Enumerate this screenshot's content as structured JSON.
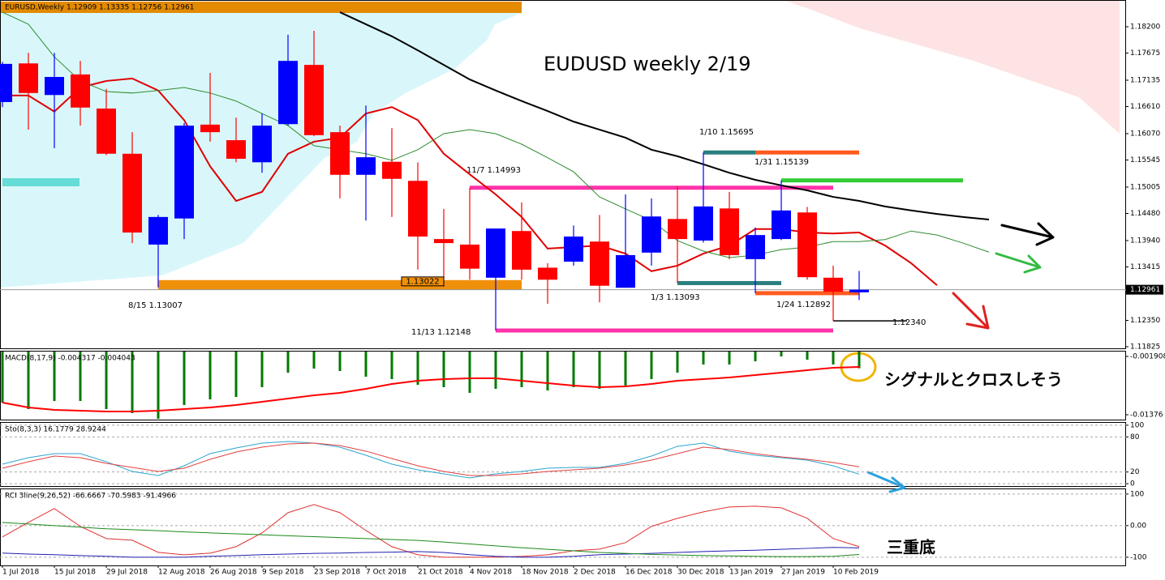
{
  "chart_data": [
    {
      "type": "candlestick",
      "title": "EURUSD,Weekly  1.12909 1.13335 1.12756 1.12961",
      "annotation": "EUDUSD weekly 2/19",
      "categories": [
        "1 Jul 2018",
        null,
        "15 Jul 2018",
        null,
        "29 Jul 2018",
        null,
        "12 Aug 2018",
        null,
        "26 Aug 2018",
        null,
        "9 Sep 2018",
        null,
        "23 Sep 2018",
        null,
        "7 Oct 2018",
        null,
        "21 Oct 2018",
        null,
        "4 Nov 2018",
        null,
        "18 Nov 2018",
        null,
        "2 Dec 2018",
        null,
        "16 Dec 2018",
        null,
        "30 Dec 2018",
        null,
        "13 Jan 2019",
        null,
        "27 Jan 2019",
        null,
        "10 Feb 2019",
        null,
        null,
        null,
        null,
        null,
        null
      ],
      "open": [
        1.167,
        1.1747,
        1.1684,
        1.1725,
        1.1657,
        1.1567,
        1.1386,
        1.1438,
        1.1625,
        1.1594,
        1.155,
        1.1626,
        1.1744,
        1.161,
        1.1525,
        1.1551,
        1.1513,
        1.1397,
        1.1386,
        1.132,
        1.1413,
        1.134,
        1.1352,
        1.1392,
        1.13,
        1.137,
        1.1437,
        1.1394,
        1.1458,
        1.1357,
        1.1397,
        1.145,
        1.132,
        1.12909,
        null,
        null,
        null,
        null,
        null
      ],
      "high": [
        1.175,
        1.1768,
        1.1768,
        1.1752,
        1.1696,
        1.161,
        1.1445,
        1.1628,
        1.1728,
        1.1639,
        1.1647,
        1.1804,
        1.1812,
        1.1623,
        1.1663,
        1.1618,
        1.155,
        1.1457,
        1.14993,
        1.1418,
        1.147,
        1.1349,
        1.1424,
        1.1445,
        1.1486,
        1.1478,
        1.1502,
        1.15695,
        1.1491,
        1.142,
        1.15139,
        1.1461,
        1.1344,
        1.13335,
        null,
        null,
        null,
        null,
        null
      ],
      "low": [
        1.166,
        1.1615,
        1.1578,
        1.1623,
        1.1564,
        1.1389,
        1.13007,
        1.1397,
        1.1591,
        1.155,
        1.1529,
        1.1623,
        1.1602,
        1.1478,
        1.1434,
        1.1441,
        1.1336,
        1.13022,
        1.1316,
        1.12148,
        1.1316,
        1.1268,
        1.1344,
        1.1271,
        1.13,
        1.1344,
        1.13093,
        1.139,
        1.1357,
        1.12892,
        1.1395,
        1.1316,
        1.1234,
        1.12756,
        null,
        null,
        null,
        null,
        null
      ],
      "close": [
        1.1746,
        1.1688,
        1.172,
        1.1659,
        1.1567,
        1.141,
        1.1441,
        1.1623,
        1.161,
        1.1557,
        1.1623,
        1.1752,
        1.1604,
        1.1525,
        1.156,
        1.1517,
        1.1402,
        1.1389,
        1.1338,
        1.1418,
        1.1336,
        1.1316,
        1.1402,
        1.1304,
        1.1365,
        1.1442,
        1.1397,
        1.1462,
        1.1365,
        1.1405,
        1.1454,
        1.1321,
        1.1292,
        1.12961,
        null,
        null,
        null,
        null,
        null
      ],
      "up_color": "#0000ff",
      "down_color": "#ff0000",
      "lines": [
        {
          "color": "#e00000",
          "values": [
            1.1683,
            1.1683,
            1.1651,
            1.1699,
            1.1712,
            1.1717,
            1.1693,
            1.1634,
            1.1542,
            1.1473,
            1.1491,
            1.1567,
            1.1591,
            1.1599,
            1.1647,
            1.166,
            1.1634,
            1.1567,
            1.1526,
            1.1486,
            1.1441,
            1.1378,
            1.1381,
            1.1384,
            1.1368,
            1.1333,
            1.1344,
            1.1368,
            1.1384,
            1.1417,
            1.1417,
            1.141,
            1.1408,
            1.141,
            1.1384,
            1.1349,
            1.1305,
            null,
            null
          ]
        },
        {
          "color": "#2e8b2e",
          "values": [
            1.1849,
            1.1825,
            1.176,
            1.1712,
            1.1691,
            1.1688,
            1.1693,
            1.1699,
            1.1688,
            1.1672,
            1.1647,
            1.1623,
            1.1583,
            1.1575,
            1.1567,
            1.1554,
            1.1575,
            1.1607,
            1.1615,
            1.1607,
            1.1586,
            1.1559,
            1.1531,
            1.1481,
            1.1457,
            1.1434,
            1.1394,
            1.1373,
            1.136,
            1.1365,
            1.1376,
            1.1381,
            1.1392,
            1.1392,
            1.1396,
            1.1413,
            1.1405,
            1.1389,
            1.1371
          ]
        },
        {
          "color": "#000000",
          "values": [
            null,
            null,
            null,
            null,
            null,
            null,
            null,
            null,
            null,
            null,
            null,
            null,
            null,
            1.1849,
            1.1825,
            1.1801,
            1.1773,
            1.1744,
            1.1715,
            1.1693,
            1.1672,
            1.1652,
            1.1631,
            1.1615,
            1.1599,
            1.1575,
            1.1562,
            1.1546,
            1.1529,
            1.1515,
            1.1504,
            1.1494,
            1.1481,
            1.1473,
            1.1462,
            1.1454,
            1.1447,
            1.1441,
            1.1436
          ]
        }
      ],
      "levels": [
        {
          "label": "8/15 1.13007",
          "value": 1.13007,
          "color": "#f0900a"
        },
        {
          "label": "11/7 1.14993",
          "value": 1.14993,
          "color": "#ff33aa"
        },
        {
          "label": "11/13 1.12148",
          "value": 1.12148,
          "color": "#ff33aa"
        },
        {
          "label": "1/10 1.15695",
          "value": 1.15695,
          "color": [
            "#2a7f7f",
            "#ff5a1f"
          ]
        },
        {
          "label": "1/31 1.15139",
          "value": 1.15139,
          "color": "#33cc33"
        },
        {
          "label": "1/3 1.13093",
          "value": 1.13093,
          "color": "#2a7f7f"
        },
        {
          "label": "1/24 1.12892",
          "value": 1.12892,
          "color": "#ff5a1f"
        },
        {
          "label": "1.12340",
          "value": 1.1234,
          "color": "#000000"
        }
      ],
      "price_box": 1.13022,
      "last_price": 1.12961,
      "ylim": [
        1.11793,
        1.18733
      ],
      "yticks": [
        {
          "value": 1.182,
          "label": "1.18200"
        },
        1.17675,
        1.17135,
        {
          "value": 1.1661,
          "label": "1.16610"
        },
        {
          "value": 1.1607,
          "label": "1.16070"
        },
        1.15545,
        1.15005,
        {
          "value": 1.1448,
          "label": "1.14480"
        },
        {
          "value": 1.1394,
          "label": "1.13940"
        },
        1.13415,
        {
          "value": 1.1235,
          "label": "1.12350"
        },
        1.11825
      ],
      "grid": false
    },
    {
      "type": "macd",
      "title": "MACD(8,17,9) -0.004317 -0.004043",
      "annotation": "シグナルとクロスしそう",
      "histogram": {
        "color": "#007a00",
        "values": [
          -0.01129,
          -0.01261,
          -0.01096,
          -0.01096,
          -0.01261,
          -0.01343,
          -0.01458,
          -0.01178,
          -0.01063,
          -0.01014,
          -0.00816,
          -0.0052,
          -0.00438,
          -0.00487,
          -0.00602,
          -0.00652,
          -0.00767,
          -0.00816,
          -0.00931,
          -0.00849,
          -0.00816,
          -0.00882,
          -0.00816,
          -0.00849,
          -0.00783,
          -0.00652,
          -0.0052,
          -0.00355,
          -0.00355,
          -0.0029,
          -0.00191,
          -0.00257,
          -0.00355,
          -0.004317
        ]
      },
      "signal": {
        "color": "#ff0000",
        "values": [
          -0.01129,
          -0.01228,
          -0.01277,
          -0.01294,
          -0.0131,
          -0.0131,
          -0.01294,
          -0.01261,
          -0.01228,
          -0.01178,
          -0.01113,
          -0.01047,
          -0.00981,
          -0.00931,
          -0.00849,
          -0.0075,
          -0.00685,
          -0.00652,
          -0.00635,
          -0.00635,
          -0.00685,
          -0.00734,
          -0.00783,
          -0.00816,
          -0.008,
          -0.0075,
          -0.00685,
          -0.00652,
          -0.00619,
          -0.00569,
          -0.0052,
          -0.00471,
          -0.00421,
          -0.004043
        ]
      },
      "ylim": [
        -0.01475,
        -0.00092
      ],
      "yticks": [
        -0.001908,
        -0.01376
      ],
      "grid": false
    },
    {
      "type": "stochastic",
      "title": "Sto(8,3,3) 16.1779 28.9244",
      "series": [
        {
          "color": "#2ba6cf",
          "values": [
            33.4,
            44.5,
            51.4,
            51.4,
            37.6,
            20.9,
            14.0,
            30.6,
            51.4,
            61.1,
            69.4,
            72.2,
            69.4,
            62.5,
            48.6,
            33.4,
            23.7,
            16.8,
            9.9,
            16.8,
            20.9,
            26.5,
            27.9,
            27.9,
            34.8,
            47.2,
            63.9,
            69.4,
            55.6,
            48.6,
            44.5,
            40.3,
            30.6,
            16.1779
          ]
        },
        {
          "color": "#e34040",
          "values": [
            26.5,
            37.6,
            47.2,
            44.5,
            34.8,
            27.9,
            20.9,
            26.5,
            41.7,
            54.2,
            62.5,
            68.0,
            69.4,
            65.3,
            55.6,
            43.1,
            30.6,
            20.9,
            14.0,
            14.0,
            16.8,
            20.9,
            23.7,
            26.5,
            32.0,
            40.3,
            51.4,
            62.5,
            58.3,
            51.4,
            45.9,
            41.7,
            36.2,
            28.9244
          ]
        }
      ],
      "ylim": [
        -4,
        104
      ],
      "yticks": [
        100,
        80,
        20,
        0
      ],
      "grid": true
    },
    {
      "type": "rci",
      "title": "RCI 3line(9,26,52) -66.6667 -70.5983 -91.4966",
      "annotation": "三重底",
      "series": [
        {
          "color": "#e03030",
          "values": [
            -35.9,
            10.3,
            53.8,
            -2.6,
            -41.0,
            -46.2,
            -84.6,
            -92.3,
            -87.2,
            -66.7,
            -23.1,
            41.0,
            66.7,
            41.0,
            -15.4,
            -66.7,
            -92.3,
            -100,
            -100,
            -100,
            -97.4,
            -92.3,
            -79.5,
            -74.4,
            -53.8,
            -2.6,
            23.1,
            43.6,
            59.0,
            61.5,
            56.4,
            23.1,
            -41.0,
            -66.6667
          ]
        },
        {
          "color": "#2020b0",
          "values": [
            -87,
            -90,
            -92,
            -95,
            -97,
            -100,
            -100,
            -100,
            -97,
            -95,
            -92,
            -90,
            -88,
            -87,
            -85,
            -84,
            -82,
            -85,
            -92,
            -97,
            -100,
            -100,
            -97,
            -92,
            -90,
            -88,
            -85,
            -82,
            -80,
            -78,
            -75,
            -72,
            -69,
            -70.5983
          ]
        },
        {
          "color": "#1a8a1a",
          "values": [
            10,
            5,
            0,
            -5,
            -10,
            -13,
            -16,
            -20,
            -23,
            -26,
            -29,
            -32,
            -35,
            -38,
            -41,
            -44,
            -47,
            -52,
            -58,
            -64,
            -70,
            -75,
            -80,
            -85,
            -88,
            -91,
            -93,
            -95,
            -96,
            -97,
            -98,
            -98,
            -97,
            -91.4966
          ]
        }
      ],
      "ylim": [
        -126,
        115
      ],
      "yticks": [
        100,
        {
          "value": 0,
          "label": "0.00"
        },
        -100
      ],
      "grid": true
    }
  ]
}
